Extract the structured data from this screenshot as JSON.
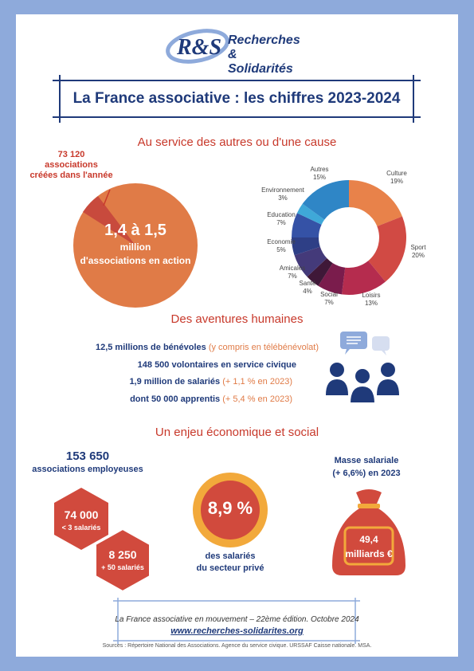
{
  "logo": {
    "letters": "R&S",
    "line1": "Recherches",
    "line2": "& Solidarités"
  },
  "title": "La France associative : les chiffres 2023-2024",
  "section1": {
    "title": "Au service des autres ou d'une cause",
    "created_line1": "73 120",
    "created_line2": "associations",
    "created_line3": "créées dans l'année",
    "pie_big": "1,4 à 1,5",
    "pie_small1": "million",
    "pie_small2": "d'associations en action",
    "colors": {
      "pie_main": "#e07b47",
      "pie_slice": "#c84a3d"
    }
  },
  "chart_data": {
    "type": "pie",
    "categories": [
      "Culture",
      "Sport",
      "Loisirs",
      "Social",
      "Santé",
      "Amicales",
      "Economie",
      "Education",
      "Environnement",
      "Autres"
    ],
    "values": [
      19,
      20,
      13,
      7,
      4,
      7,
      5,
      7,
      3,
      15
    ],
    "labels": [
      "19%",
      "20%",
      "13%",
      "7%",
      "4%",
      "7%",
      "5%",
      "7%",
      "3%",
      "15%"
    ],
    "colors": [
      "#e8824a",
      "#d14a44",
      "#b52c4e",
      "#7a1c4c",
      "#3f1838",
      "#443a7a",
      "#2e3f86",
      "#3552a6",
      "#3fa8d8",
      "#2f86c6"
    ]
  },
  "section2": {
    "title": "Des aventures humaines",
    "line1_bold": "12,5 millions de bénévoles",
    "line1_note": "(y compris en télébénévolat)",
    "line2_bold": "148 500 volontaires en service civique",
    "line3_bold": "1,9 million de salariés",
    "line3_note": "(+ 1,1 % en 2023)",
    "line4_bold": "dont 50 000 apprentis",
    "line4_note": "(+ 5,4 % en 2023)"
  },
  "section3": {
    "title": "Un enjeu économique et social",
    "count_big": "153 650",
    "count_small": "associations employeuses",
    "hex1_big": "74 000",
    "hex1_small": "< 3 salariés",
    "hex2_big": "8 250",
    "hex2_small": "+ 50 salariés",
    "circle_value": "8,9 %",
    "circle_caption1": "des salariés",
    "circle_caption2": "du secteur privé",
    "payroll_label1": "Masse salariale",
    "payroll_label2": "(+ 6,6%) en 2023",
    "bag_value1": "49,4",
    "bag_value2": "milliards €"
  },
  "footer": {
    "line1": "La France associative en mouvement – 22ème édition. Octobre 2024",
    "link": "www.recherches-solidarites.org",
    "sources": "Sources : Répertoire National des Associations. Agence du service civique. URSSAF Caisse nationale. MSA."
  }
}
